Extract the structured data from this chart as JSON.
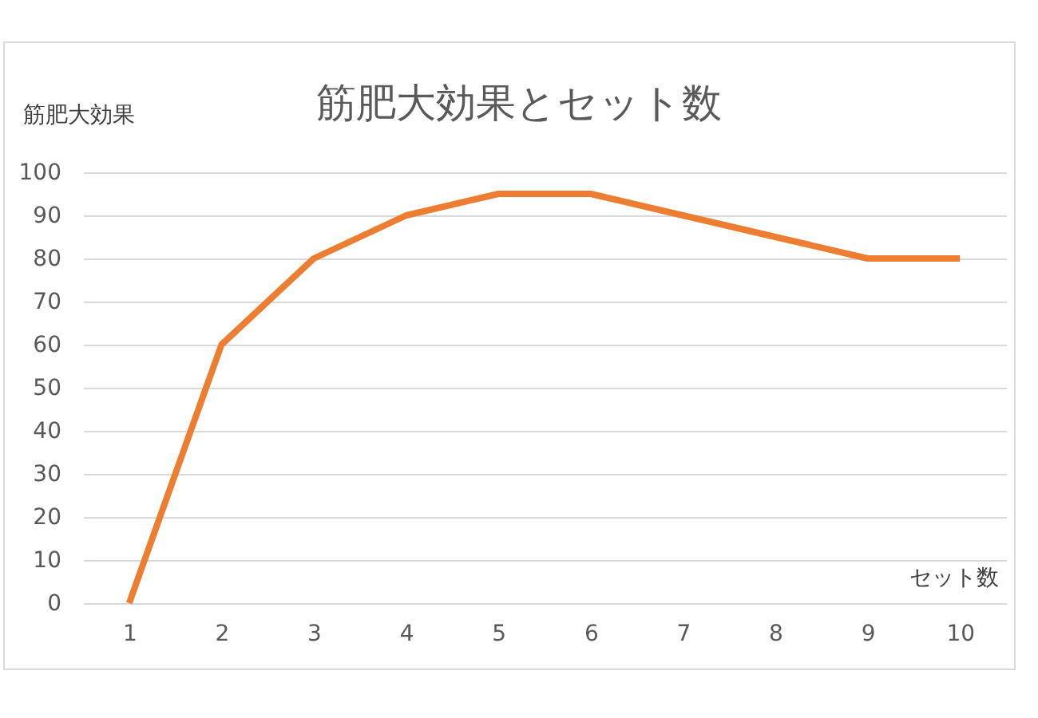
{
  "chart_data": {
    "type": "line",
    "title": "筋肥大効果とセット数",
    "xlabel": "セット数",
    "ylabel": "筋肥大効果",
    "categories": [
      "1",
      "2",
      "3",
      "4",
      "5",
      "6",
      "7",
      "8",
      "9",
      "10"
    ],
    "series": [
      {
        "color": "#ed7d31",
        "values": [
          0,
          60,
          80,
          90,
          95,
          95,
          90,
          85,
          80,
          80
        ]
      }
    ],
    "ylim": [
      0,
      100
    ],
    "yticks": [
      0,
      10,
      20,
      30,
      40,
      50,
      60,
      70,
      80,
      90,
      100
    ],
    "grid": "y",
    "marker": "none",
    "line_style": "solid"
  }
}
